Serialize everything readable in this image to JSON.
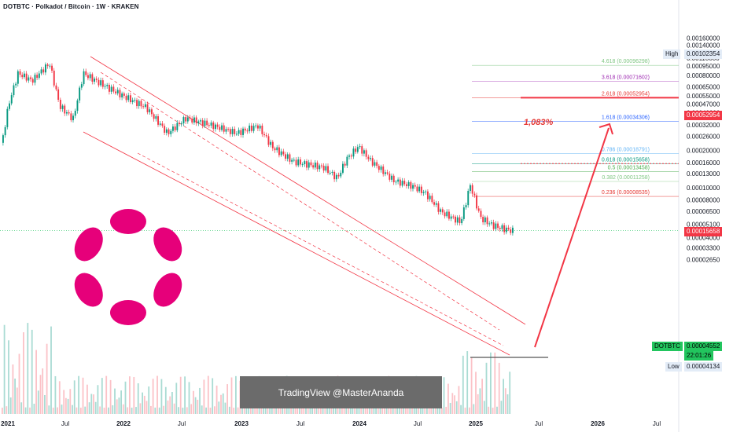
{
  "chart_data": {
    "type": "candlestick",
    "title": "DOTBTC · Polkadot / Bitcoin · 1W · KRAKEN",
    "y_scale": "log",
    "y_ticks": [
      "0.00160000",
      "0.00140000",
      "0.00110000",
      "0.00095000",
      "0.00080000",
      "0.00065000",
      "0.00055000",
      "0.00047000",
      "0.00040000",
      "0.00032000",
      "0.00026000",
      "0.00020000",
      "0.00016000",
      "0.00013000",
      "0.00010000",
      "0.00008000",
      "0.00006500",
      "0.00005100",
      "0.00004000",
      "0.00003300",
      "0.00002650"
    ],
    "x_ticks": [
      "2021",
      "Jul",
      "2022",
      "Jul",
      "2023",
      "Jul",
      "2024",
      "Jul",
      "2025",
      "Jul",
      "2026",
      "Jul"
    ],
    "fib_levels": [
      {
        "label": "4.618 (0.00096298)",
        "value": 0.00096298,
        "color": "#81c784"
      },
      {
        "label": "3.618 (0.00071602)",
        "value": 0.00071602,
        "color": "#9c27b0"
      },
      {
        "label": "2.618 (0.00052954)",
        "value": 0.00052954,
        "color": "#e53935"
      },
      {
        "label": "1.618 (0.00034306)",
        "value": 0.00034306,
        "color": "#2962ff"
      },
      {
        "label": "0.786 (0.00018791)",
        "value": 0.00018791,
        "color": "#64b5f6"
      },
      {
        "label": "0.618 (0.00015658)",
        "value": 0.00015658,
        "color": "#089981"
      },
      {
        "label": "0.5 (0.00013458)",
        "value": 0.00013458,
        "color": "#4caf50"
      },
      {
        "label": "0.382 (0.00011258)",
        "value": 0.00011258,
        "color": "#81c784"
      },
      {
        "label": "0.236 (0.00008535)",
        "value": 8.535e-05,
        "color": "#e53935"
      }
    ],
    "price_tags": {
      "high_label": "High",
      "high_value": "0.00102354",
      "target_value": "0.00052954",
      "fib618_value": "0.00015658",
      "symbol": "DOTBTC",
      "last_value": "0.00004552",
      "countdown": "22:01:26",
      "low_label": "Low",
      "low_value": "0.00004134"
    },
    "annotation_pct": "1,083%",
    "watermark": "TradingView @MasterAnanda",
    "colors": {
      "up": "#089981",
      "down": "#f23645",
      "accent": "#e91e63",
      "logo": "#e6007a"
    }
  }
}
